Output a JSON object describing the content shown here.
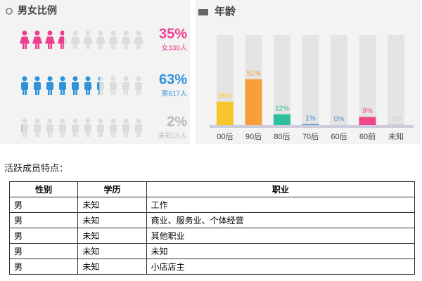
{
  "chart_data": [
    {
      "type": "pictogram",
      "title": "男女比例",
      "categories": [
        "女339人",
        "男617人",
        "未知16人"
      ],
      "values": [
        35,
        63,
        2
      ],
      "value_labels": [
        "35%",
        "63%",
        "2%"
      ],
      "colors": [
        "#ee3d8f",
        "#2e93d9",
        "#bbbbbb"
      ],
      "ylim": [
        0,
        100
      ]
    },
    {
      "type": "bar",
      "title": "年龄",
      "categories": [
        "00后",
        "90后",
        "80后",
        "70后",
        "60后",
        "60前",
        "未知"
      ],
      "values": [
        26,
        51,
        12,
        1,
        0,
        9,
        1
      ],
      "value_labels": [
        "26%",
        "51%",
        "12%",
        "1%",
        "0%",
        "9%",
        "1%"
      ],
      "colors": [
        "#f8c52a",
        "#f7a03a",
        "#2bbf9a",
        "#4a8fd6",
        "#4a8fd6",
        "#f0468a",
        "#cccccc"
      ],
      "ylim": [
        0,
        100
      ]
    }
  ],
  "caption": "活跃成员特点：",
  "table": {
    "header": [
      "性别",
      "学历",
      "职业"
    ],
    "rows": [
      [
        "男",
        "未知",
        "工作"
      ],
      [
        "男",
        "未知",
        "商业、服务业、个体经营"
      ],
      [
        "男",
        "未知",
        "其他职业"
      ],
      [
        "男",
        "未知",
        "未知"
      ],
      [
        "男",
        "未知",
        "小店店主"
      ]
    ]
  }
}
